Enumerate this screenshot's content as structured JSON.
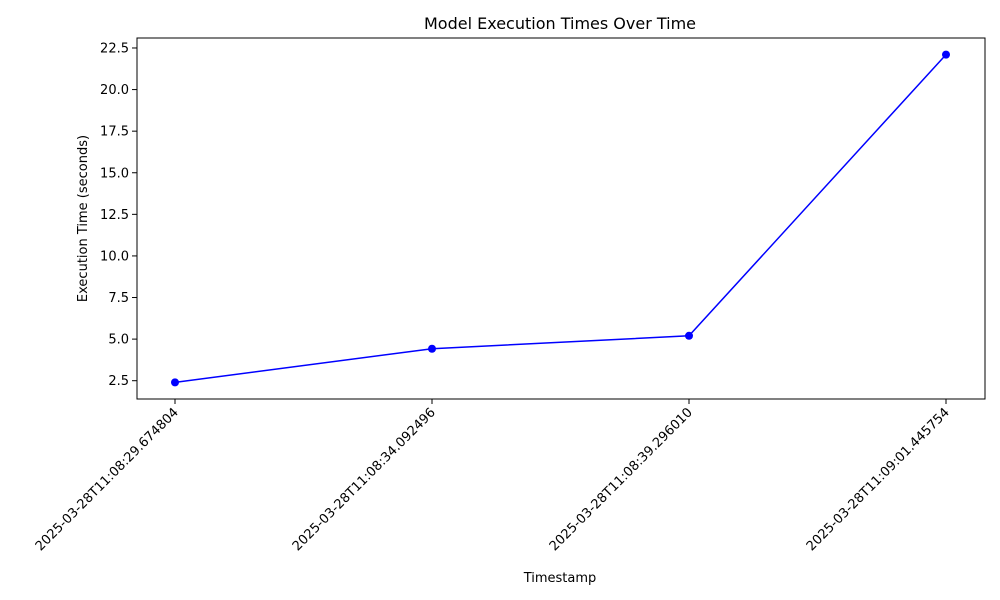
{
  "chart_data": {
    "type": "line",
    "title": "Model Execution Times Over Time",
    "xlabel": "Timestamp",
    "ylabel": "Execution Time (seconds)",
    "categories": [
      "2025-03-28T11:08:29.674804",
      "2025-03-28T11:08:34.092496",
      "2025-03-28T11:08:39.296010",
      "2025-03-28T11:09:01.445754"
    ],
    "series": [
      {
        "values": [
          2.4,
          4.42,
          5.2,
          22.1
        ],
        "color": "#0000ff"
      }
    ],
    "ylim": [
      1.4,
      23.1
    ],
    "yticks": [
      2.5,
      5.0,
      7.5,
      10.0,
      12.5,
      15.0,
      17.5,
      20.0,
      22.5
    ],
    "ytick_labels": [
      "2.5",
      "5.0",
      "7.5",
      "10.0",
      "12.5",
      "15.0",
      "17.5",
      "20.0",
      "22.5"
    ],
    "grid": false,
    "markers": "circle"
  }
}
